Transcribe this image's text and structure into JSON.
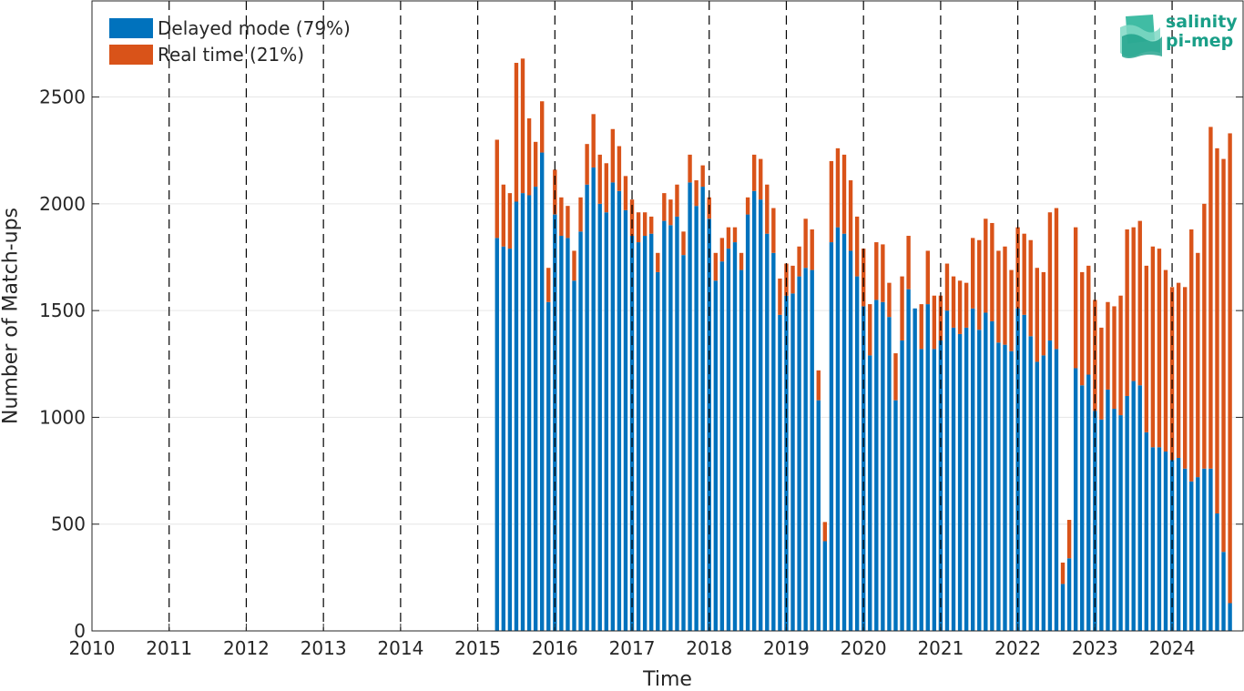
{
  "chart_data": {
    "type": "bar",
    "stacked": true,
    "xlabel": "Time",
    "ylabel": "Number of Match-ups",
    "xlim": [
      2010,
      2024.92
    ],
    "ylim": [
      0,
      2950
    ],
    "x_ticks": [
      "2010",
      "2011",
      "2012",
      "2013",
      "2014",
      "2015",
      "2016",
      "2017",
      "2018",
      "2019",
      "2020",
      "2021",
      "2022",
      "2023",
      "2024"
    ],
    "y_ticks": [
      0,
      500,
      1000,
      1500,
      2000,
      2500
    ],
    "y_tick_labels": [
      "0",
      "500",
      "1000",
      "1500",
      "2000",
      "2500"
    ],
    "grid": "horizontal",
    "year_dividers": "dashed",
    "legend_position": "top-left",
    "colors": {
      "delayed": "#0072BD",
      "realtime": "#D95319",
      "logo": "#1a9f88"
    },
    "x_start": "2015-04",
    "series": [
      {
        "name": "Delayed mode (79%)",
        "values": [
          1840,
          1800,
          1790,
          2010,
          2050,
          2040,
          2080,
          2240,
          1540,
          1950,
          1850,
          1840,
          1640,
          1870,
          2090,
          2170,
          2000,
          1960,
          2100,
          2060,
          1970,
          1850,
          1820,
          1850,
          1860,
          1680,
          1920,
          1900,
          1940,
          1760,
          2100,
          1990,
          2080,
          1930,
          1640,
          1730,
          1790,
          1820,
          1690,
          1950,
          2060,
          2020,
          1860,
          1770,
          1480,
          1570,
          1580,
          1660,
          1700,
          1690,
          1080,
          420,
          1820,
          1890,
          1860,
          1780,
          1660,
          1520,
          1290,
          1550,
          1540,
          1470,
          1080,
          1360,
          1600,
          1510,
          1320,
          1530,
          1320,
          1360,
          1500,
          1420,
          1390,
          1420,
          1510,
          1410,
          1490,
          1450,
          1350,
          1340,
          1310,
          1510,
          1480,
          1380,
          1260,
          1290,
          1360,
          1320,
          220,
          340,
          1230,
          1150,
          1200,
          1030,
          990,
          1130,
          1040,
          1010,
          1100,
          1170,
          1150,
          930,
          860,
          860,
          840,
          800,
          810,
          760,
          700,
          720,
          760,
          760,
          550,
          370,
          130
        ]
      },
      {
        "name": "Real time (21%)",
        "values": [
          460,
          290,
          260,
          650,
          630,
          360,
          210,
          240,
          160,
          210,
          180,
          150,
          140,
          160,
          190,
          250,
          230,
          230,
          250,
          210,
          160,
          170,
          140,
          110,
          80,
          90,
          130,
          120,
          150,
          110,
          130,
          120,
          100,
          100,
          130,
          110,
          100,
          70,
          80,
          80,
          170,
          190,
          230,
          210,
          170,
          150,
          130,
          140,
          230,
          190,
          140,
          90,
          380,
          370,
          370,
          330,
          280,
          270,
          240,
          270,
          270,
          160,
          220,
          300,
          250,
          0,
          210,
          250,
          250,
          210,
          220,
          240,
          250,
          210,
          330,
          420,
          440,
          460,
          430,
          460,
          380,
          380,
          380,
          450,
          440,
          390,
          600,
          660,
          100,
          180,
          660,
          530,
          510,
          520,
          430,
          410,
          480,
          560,
          780,
          720,
          770,
          780,
          940,
          930,
          850,
          810,
          820,
          850,
          1180,
          1050,
          1240,
          1600,
          1710,
          1840,
          2200
        ]
      }
    ]
  },
  "legend": {
    "delayed_label": "Delayed mode (79%)",
    "realtime_label": "Real time (21%)"
  },
  "axes": {
    "xlabel": "Time",
    "ylabel": "Number of Match-ups"
  },
  "logo": {
    "line1": "salinity",
    "line2": "pi-mep"
  }
}
